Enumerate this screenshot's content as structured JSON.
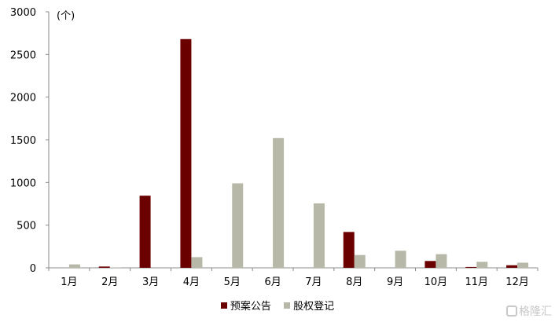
{
  "chart_data": {
    "type": "bar",
    "unit_label": "(个)",
    "categories": [
      "1月",
      "2月",
      "3月",
      "4月",
      "5月",
      "6月",
      "7月",
      "8月",
      "9月",
      "10月",
      "11月",
      "12月"
    ],
    "series": [
      {
        "name": "预案公告",
        "color": "#6b0000",
        "values": [
          0,
          15,
          845,
          2680,
          0,
          0,
          0,
          420,
          0,
          80,
          10,
          30
        ]
      },
      {
        "name": "股权登记",
        "color": "#b8b8a8",
        "values": [
          40,
          5,
          0,
          125,
          990,
          1520,
          755,
          150,
          200,
          160,
          70,
          60
        ]
      }
    ],
    "ylim": [
      0,
      3000
    ],
    "yticks": [
      0,
      500,
      1000,
      1500,
      2000,
      2500,
      3000
    ],
    "grid": false,
    "legend_position": "bottom"
  },
  "watermark": "格隆汇"
}
